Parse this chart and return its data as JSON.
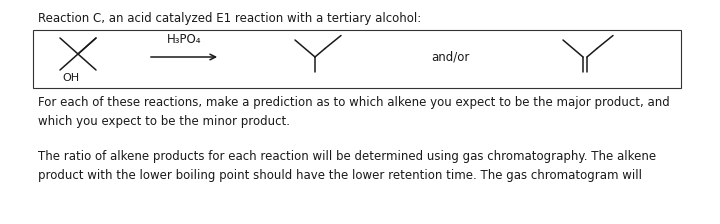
{
  "title_text": "Reaction C, an acid catalyzed E1 reaction with a tertiary alcohol:",
  "reagent_text": "H₃PO₄",
  "andor_text": "and/or",
  "oh_text": "OH",
  "paragraph1": "For each of these reactions, make a prediction as to which alkene you expect to be the major product, and\nwhich you expect to be the minor product.",
  "paragraph2": "The ratio of alkene products for each reaction will be determined using gas chromatography. The alkene\nproduct with the lower boiling point should have the lower retention time. The gas chromatogram will",
  "bg_color": "#ffffff",
  "text_color": "#1a1a1a",
  "box_color": "#333333",
  "font_size_title": 8.5,
  "font_size_body": 8.5,
  "font_size_mol": 8.5,
  "font_size_reagent": 8.5
}
